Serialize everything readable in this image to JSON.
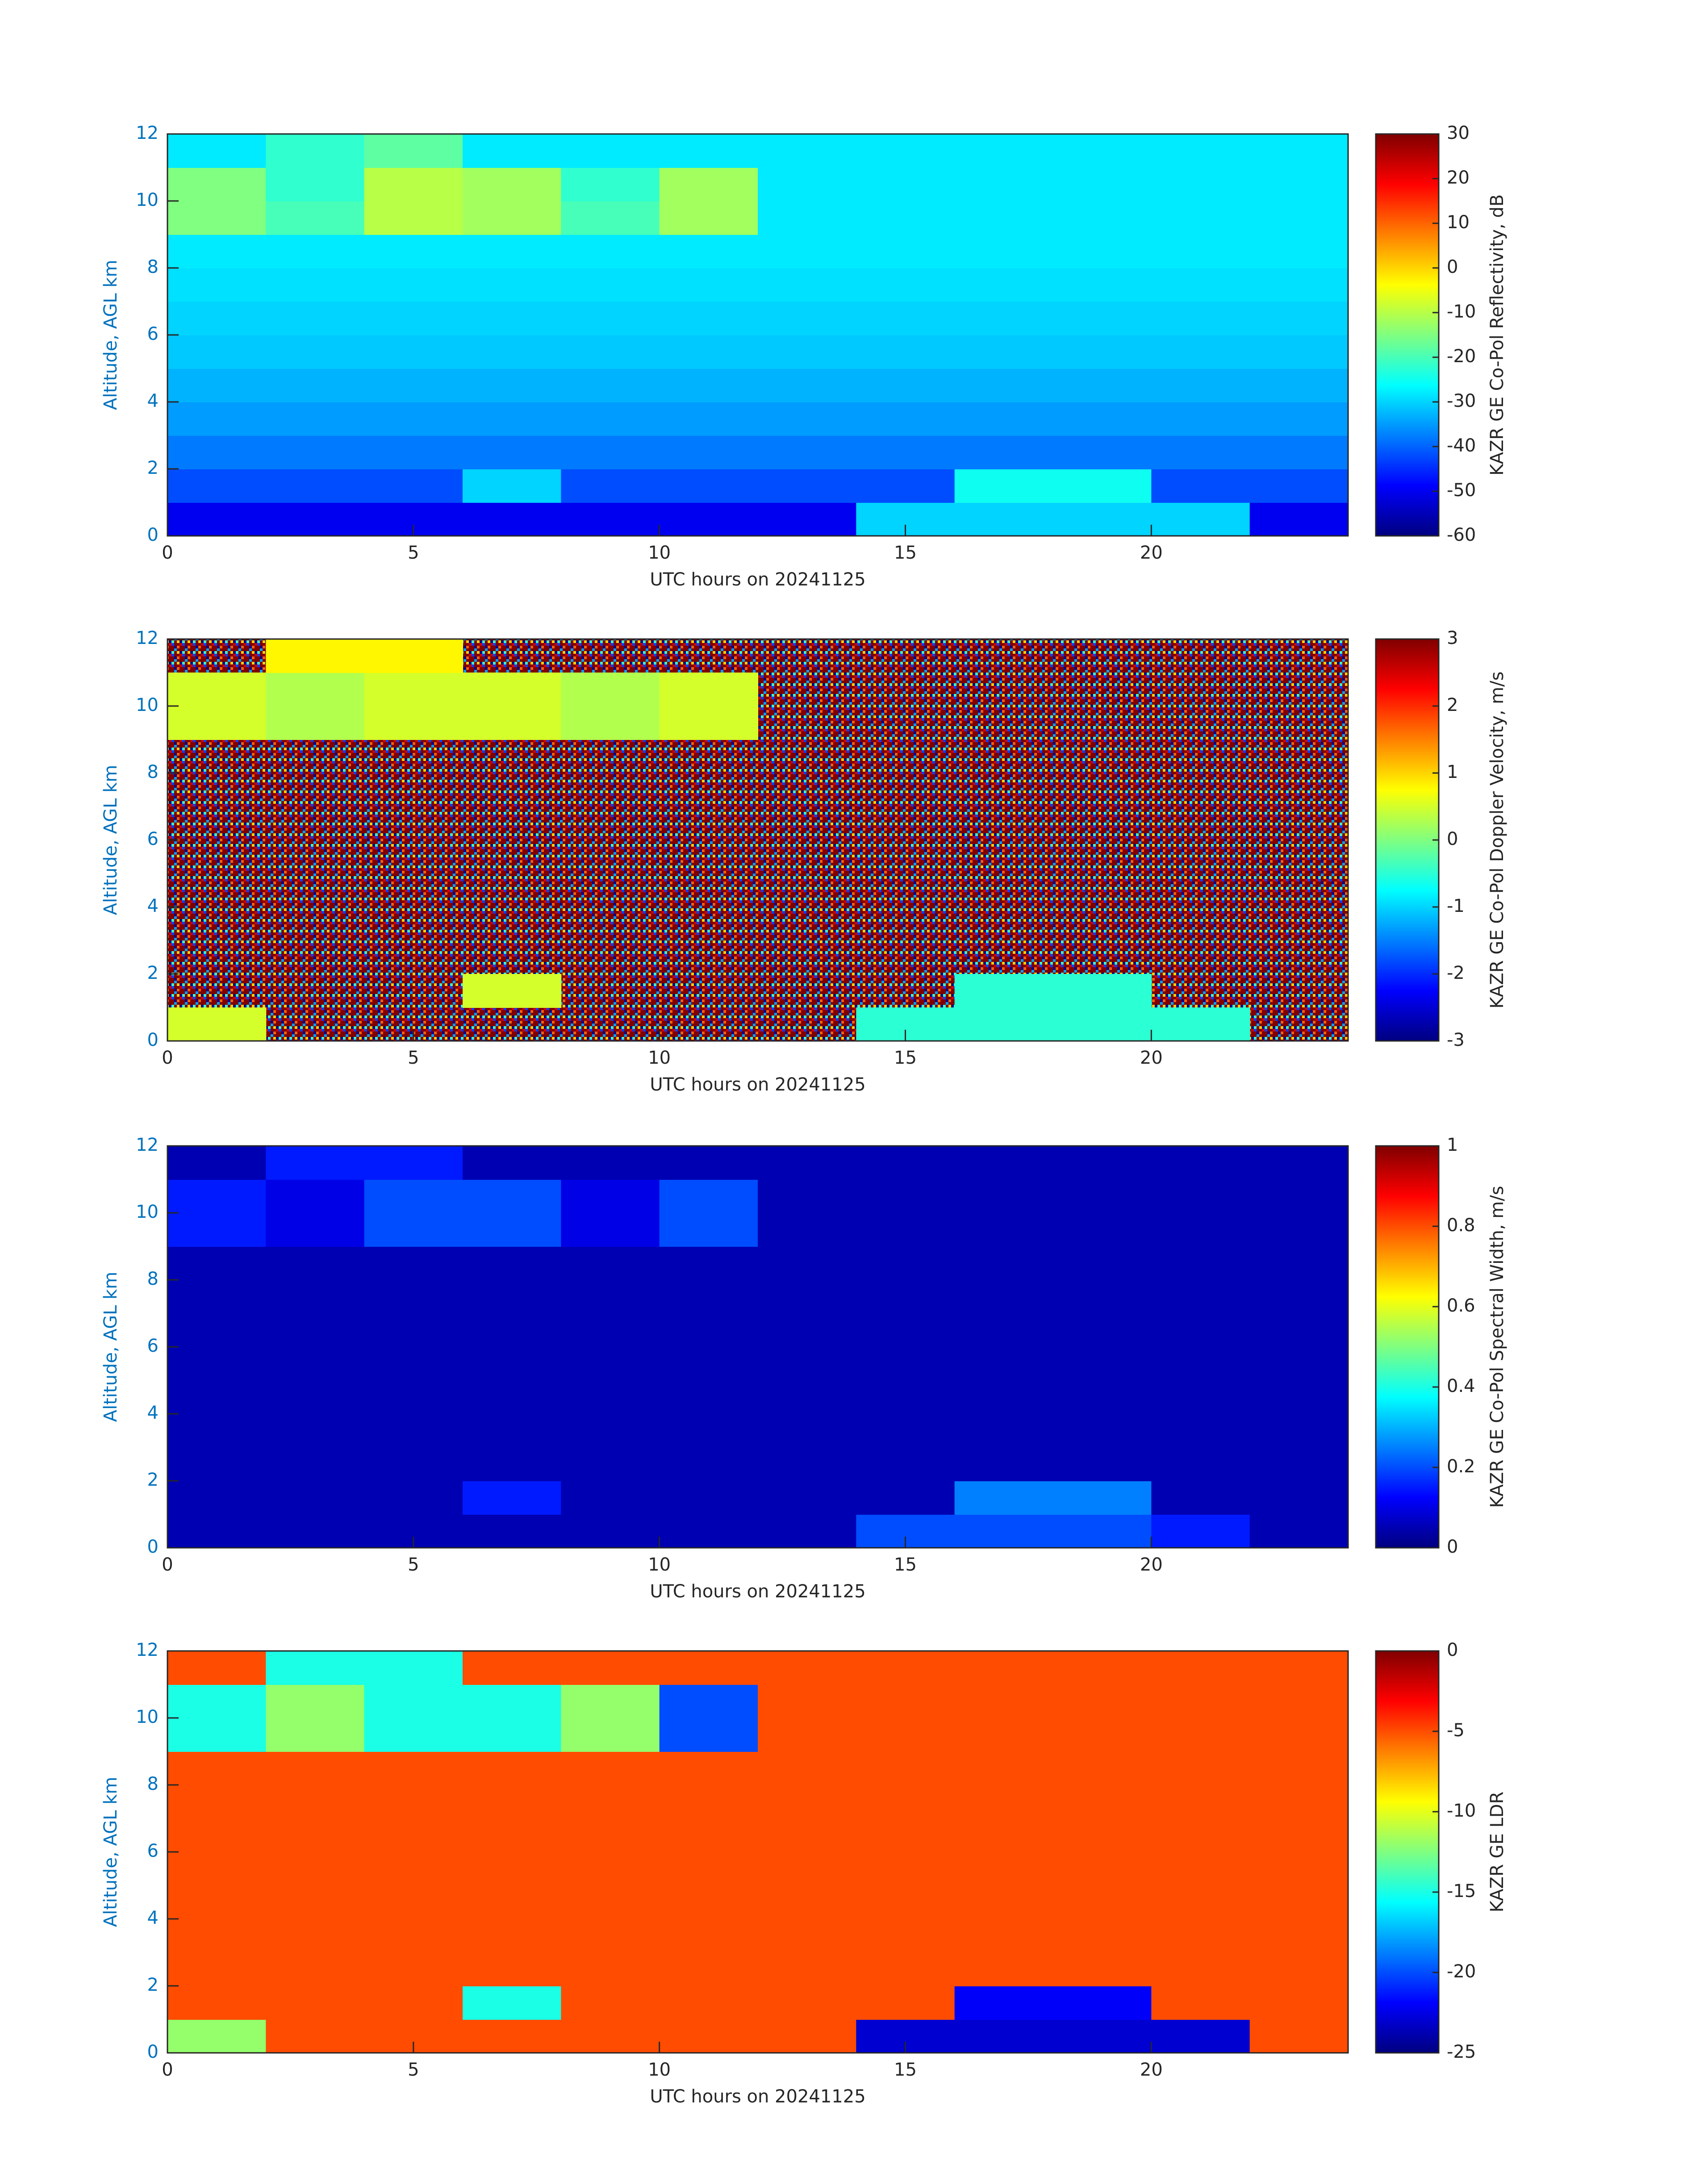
{
  "chart_data": [
    {
      "type": "heatmap",
      "x": [
        0,
        2,
        4,
        6,
        8,
        10,
        12,
        14,
        16,
        18,
        20,
        22,
        24
      ],
      "y": [
        0,
        1,
        2,
        3,
        4,
        5,
        6,
        7,
        8,
        9,
        10,
        11,
        12
      ],
      "z": [
        [
          -50,
          -50,
          -50,
          -50,
          -50,
          -50,
          -50,
          -30,
          -30,
          -30,
          -30,
          -50
        ],
        [
          -42,
          -42,
          -42,
          -30,
          -42,
          -42,
          -42,
          -42,
          -25,
          -25,
          -42,
          -42
        ],
        [
          -38,
          -38,
          -38,
          -38,
          -38,
          -38,
          -38,
          -38,
          -38,
          -38,
          -38,
          -38
        ],
        [
          -35,
          -35,
          -35,
          -35,
          -35,
          -35,
          -35,
          -35,
          -35,
          -35,
          -35,
          -35
        ],
        [
          -33,
          -33,
          -33,
          -33,
          -33,
          -33,
          -33,
          -33,
          -33,
          -33,
          -33,
          -33
        ],
        [
          -31,
          -31,
          -31,
          -31,
          -31,
          -31,
          -31,
          -31,
          -31,
          -31,
          -31,
          -31
        ],
        [
          -30,
          -30,
          -30,
          -30,
          -30,
          -30,
          -30,
          -30,
          -30,
          -30,
          -30,
          -30
        ],
        [
          -29,
          -29,
          -29,
          -29,
          -29,
          -29,
          -29,
          -29,
          -29,
          -29,
          -29,
          -29
        ],
        [
          -28,
          -28,
          -28,
          -28,
          -28,
          -28,
          -28,
          -28,
          -28,
          -28,
          -28,
          -28
        ],
        [
          -15,
          -20,
          -10,
          -12,
          -20,
          -12,
          -28,
          -28,
          -28,
          -28,
          -28,
          -28
        ],
        [
          -15,
          -22,
          -10,
          -12,
          -22,
          -12,
          -28,
          -28,
          -28,
          -28,
          -28,
          -28
        ],
        [
          -28,
          -22,
          -18,
          -28,
          -28,
          -28,
          -28,
          -28,
          -28,
          -28,
          -28,
          -28
        ]
      ],
      "xlim": [
        0,
        24
      ],
      "ylim": [
        0,
        12
      ],
      "xticks": [
        0,
        5,
        10,
        15,
        20
      ],
      "yticks": [
        0,
        2,
        4,
        6,
        8,
        10,
        12
      ],
      "xlabel": "UTC hours on 20241125",
      "ylabel": "Altitude, AGL km",
      "colorbar": {
        "label": "KAZR GE Co-Pol Reflectivity, dB",
        "lim": [
          -60,
          30
        ],
        "ticks": [
          30,
          20,
          10,
          0,
          -10,
          -20,
          -30,
          -40,
          -50,
          -60
        ],
        "colormap": "jet"
      }
    },
    {
      "type": "heatmap",
      "x": [
        0,
        2,
        4,
        6,
        8,
        10,
        12,
        14,
        16,
        18,
        20,
        22,
        24
      ],
      "y": [
        0,
        1,
        2,
        3,
        4,
        5,
        6,
        7,
        8,
        9,
        10,
        11,
        12
      ],
      "z": [
        [
          0.5,
          null,
          null,
          null,
          null,
          null,
          null,
          -0.5,
          -0.5,
          -0.5,
          -0.5,
          null
        ],
        [
          null,
          null,
          null,
          0.5,
          null,
          null,
          null,
          null,
          -0.5,
          -0.5,
          null,
          null
        ],
        [
          null,
          null,
          null,
          null,
          null,
          null,
          null,
          null,
          null,
          null,
          null,
          null
        ],
        [
          null,
          null,
          null,
          null,
          null,
          null,
          null,
          null,
          null,
          null,
          null,
          null
        ],
        [
          null,
          null,
          null,
          null,
          null,
          null,
          null,
          null,
          null,
          null,
          null,
          null
        ],
        [
          null,
          null,
          null,
          null,
          null,
          null,
          null,
          null,
          null,
          null,
          null,
          null
        ],
        [
          null,
          null,
          null,
          null,
          null,
          null,
          null,
          null,
          null,
          null,
          null,
          null
        ],
        [
          null,
          null,
          null,
          null,
          null,
          null,
          null,
          null,
          null,
          null,
          null,
          null
        ],
        [
          null,
          null,
          null,
          null,
          null,
          null,
          null,
          null,
          null,
          null,
          null,
          null
        ],
        [
          0.5,
          0.3,
          0.5,
          0.5,
          0.3,
          0.5,
          null,
          null,
          null,
          null,
          null,
          null
        ],
        [
          0.5,
          0.3,
          0.5,
          0.5,
          0.3,
          0.5,
          null,
          null,
          null,
          null,
          null,
          null
        ],
        [
          null,
          0.8,
          0.8,
          null,
          null,
          null,
          null,
          null,
          null,
          null,
          null,
          null
        ]
      ],
      "xlim": [
        0,
        24
      ],
      "ylim": [
        0,
        12
      ],
      "xticks": [
        0,
        5,
        10,
        15,
        20
      ],
      "yticks": [
        0,
        2,
        4,
        6,
        8,
        10,
        12
      ],
      "xlabel": "UTC hours on 20241125",
      "ylabel": "Altitude, AGL km",
      "colorbar": {
        "label": "KAZR GE Co-Pol Doppler Velocity, m/s",
        "lim": [
          -3,
          3
        ],
        "ticks": [
          3,
          2,
          1,
          0,
          -1,
          -2,
          -3
        ],
        "colormap": "jet"
      }
    },
    {
      "type": "heatmap",
      "x": [
        0,
        2,
        4,
        6,
        8,
        10,
        12,
        14,
        16,
        18,
        20,
        22,
        24
      ],
      "y": [
        0,
        1,
        2,
        3,
        4,
        5,
        6,
        7,
        8,
        9,
        10,
        11,
        12
      ],
      "z": [
        [
          0.05,
          0.05,
          0.05,
          0.05,
          0.05,
          0.05,
          0.05,
          0.2,
          0.2,
          0.2,
          0.15,
          0.05
        ],
        [
          0.05,
          0.05,
          0.05,
          0.15,
          0.05,
          0.05,
          0.05,
          0.05,
          0.25,
          0.25,
          0.05,
          0.05
        ],
        [
          0.05,
          0.05,
          0.05,
          0.05,
          0.05,
          0.05,
          0.05,
          0.05,
          0.05,
          0.05,
          0.05,
          0.05
        ],
        [
          0.05,
          0.05,
          0.05,
          0.05,
          0.05,
          0.05,
          0.05,
          0.05,
          0.05,
          0.05,
          0.05,
          0.05
        ],
        [
          0.05,
          0.05,
          0.05,
          0.05,
          0.05,
          0.05,
          0.05,
          0.05,
          0.05,
          0.05,
          0.05,
          0.05
        ],
        [
          0.05,
          0.05,
          0.05,
          0.05,
          0.05,
          0.05,
          0.05,
          0.05,
          0.05,
          0.05,
          0.05,
          0.05
        ],
        [
          0.05,
          0.05,
          0.05,
          0.05,
          0.05,
          0.05,
          0.05,
          0.05,
          0.05,
          0.05,
          0.05,
          0.05
        ],
        [
          0.05,
          0.05,
          0.05,
          0.05,
          0.05,
          0.05,
          0.05,
          0.05,
          0.05,
          0.05,
          0.05,
          0.05
        ],
        [
          0.05,
          0.05,
          0.05,
          0.05,
          0.05,
          0.05,
          0.05,
          0.05,
          0.05,
          0.05,
          0.05,
          0.05
        ],
        [
          0.15,
          0.1,
          0.2,
          0.2,
          0.1,
          0.2,
          0.05,
          0.05,
          0.05,
          0.05,
          0.05,
          0.05
        ],
        [
          0.15,
          0.1,
          0.2,
          0.2,
          0.1,
          0.2,
          0.05,
          0.05,
          0.05,
          0.05,
          0.05,
          0.05
        ],
        [
          0.05,
          0.15,
          0.15,
          0.05,
          0.05,
          0.05,
          0.05,
          0.05,
          0.05,
          0.05,
          0.05,
          0.05
        ]
      ],
      "xlim": [
        0,
        24
      ],
      "ylim": [
        0,
        12
      ],
      "xticks": [
        0,
        5,
        10,
        15,
        20
      ],
      "yticks": [
        0,
        2,
        4,
        6,
        8,
        10,
        12
      ],
      "xlabel": "UTC hours on 20241125",
      "ylabel": "Altitude, AGL km",
      "colorbar": {
        "label": "KAZR GE Co-Pol Spectral Width, m/s",
        "lim": [
          0,
          1
        ],
        "ticks": [
          1,
          0.8,
          0.6,
          0.4,
          0.2,
          0
        ],
        "colormap": "jet"
      }
    },
    {
      "type": "heatmap",
      "x": [
        0,
        2,
        4,
        6,
        8,
        10,
        12,
        14,
        16,
        18,
        20,
        22,
        24
      ],
      "y": [
        0,
        1,
        2,
        3,
        4,
        5,
        6,
        7,
        8,
        9,
        10,
        11,
        12
      ],
      "z": [
        [
          -12,
          -5,
          -5,
          -5,
          -5,
          -5,
          -5,
          -23,
          -23,
          -23,
          -23,
          -5
        ],
        [
          -5,
          -5,
          -5,
          -15,
          -5,
          -5,
          -5,
          -5,
          -22,
          -22,
          -5,
          -5
        ],
        [
          -5,
          -5,
          -5,
          -5,
          -5,
          -5,
          -5,
          -5,
          -5,
          -5,
          -5,
          -5
        ],
        [
          -5,
          -5,
          -5,
          -5,
          -5,
          -5,
          -5,
          -5,
          -5,
          -5,
          -5,
          -5
        ],
        [
          -5,
          -5,
          -5,
          -5,
          -5,
          -5,
          -5,
          -5,
          -5,
          -5,
          -5,
          -5
        ],
        [
          -5,
          -5,
          -5,
          -5,
          -5,
          -5,
          -5,
          -5,
          -5,
          -5,
          -5,
          -5
        ],
        [
          -5,
          -5,
          -5,
          -5,
          -5,
          -5,
          -5,
          -5,
          -5,
          -5,
          -5,
          -5
        ],
        [
          -5,
          -5,
          -5,
          -5,
          -5,
          -5,
          -5,
          -5,
          -5,
          -5,
          -5,
          -5
        ],
        [
          -5,
          -5,
          -5,
          -5,
          -5,
          -5,
          -5,
          -5,
          -5,
          -5,
          -5,
          -5
        ],
        [
          -15,
          -12,
          -15,
          -15,
          -12,
          -20,
          -5,
          -5,
          -5,
          -5,
          -5,
          -5
        ],
        [
          -15,
          -12,
          -15,
          -15,
          -12,
          -20,
          -5,
          -5,
          -5,
          -5,
          -5,
          -5
        ],
        [
          -5,
          -15,
          -15,
          -5,
          -5,
          -5,
          -5,
          -5,
          -5,
          -5,
          -5,
          -5
        ]
      ],
      "xlim": [
        0,
        24
      ],
      "ylim": [
        0,
        12
      ],
      "xticks": [
        0,
        5,
        10,
        15,
        20
      ],
      "yticks": [
        0,
        2,
        4,
        6,
        8,
        10,
        12
      ],
      "xlabel": "UTC hours on 20241125",
      "ylabel": "Altitude, AGL km",
      "colorbar": {
        "label": "KAZR GE LDR",
        "lim": [
          -25,
          0
        ],
        "ticks": [
          0,
          -5,
          -10,
          -15,
          -20,
          -25
        ],
        "colormap": "jet"
      }
    }
  ]
}
